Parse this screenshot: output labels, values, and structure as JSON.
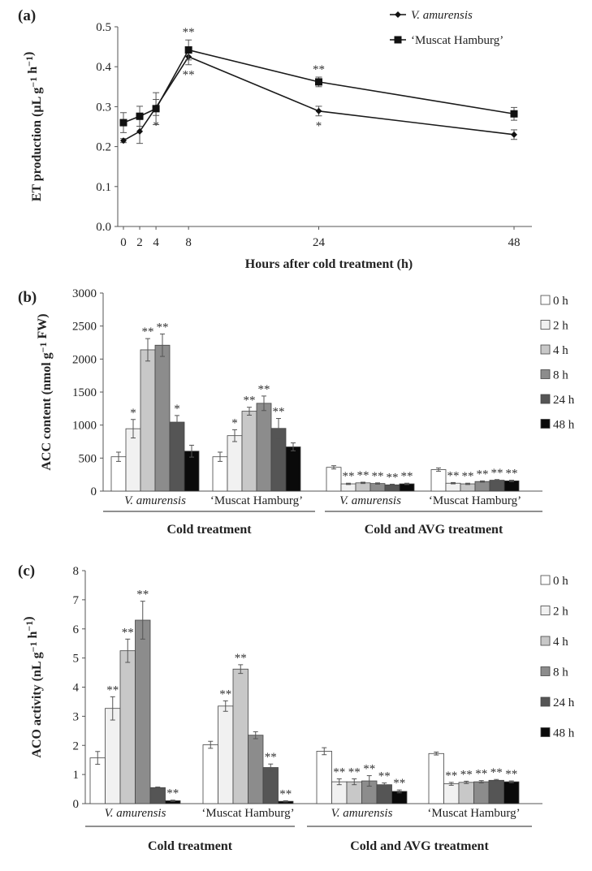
{
  "chart_data": [
    {
      "type": "line",
      "panel": "(a)",
      "ylabel": "ET production (µL g⁻¹ h⁻¹)",
      "xlabel": "Hours after cold treatment (h)",
      "ylim": [
        0,
        0.5
      ],
      "yticks": [
        "0.0",
        "0.1",
        "0.2",
        "0.3",
        "0.4",
        "0.5"
      ],
      "x": [
        0,
        2,
        4,
        8,
        24,
        48
      ],
      "xticks": [
        "0",
        "2",
        "4",
        "8",
        "24",
        "48"
      ],
      "series": [
        {
          "name": "V. amurensis",
          "marker": "diamond",
          "values": [
            0.215,
            0.238,
            0.298,
            0.425,
            0.289,
            0.23
          ],
          "errors": [
            0.005,
            0.03,
            0.02,
            0.02,
            0.012,
            0.012
          ],
          "stars": [
            "",
            "",
            "*",
            "**",
            "*",
            ""
          ]
        },
        {
          "name": "‘Muscat Hamburg’",
          "marker": "square",
          "values": [
            0.26,
            0.276,
            0.295,
            0.442,
            0.362,
            0.282
          ],
          "errors": [
            0.025,
            0.025,
            0.04,
            0.025,
            0.012,
            0.016
          ],
          "stars": [
            "",
            "",
            "",
            "**",
            "**",
            ""
          ]
        }
      ],
      "legend": [
        "V. amurensis",
        "‘Muscat Hamburg’"
      ]
    },
    {
      "type": "bar",
      "panel": "(b)",
      "ylabel": "ACC content (nmol g⁻¹ FW)",
      "ylim": [
        0,
        3000
      ],
      "yticks": [
        "0",
        "500",
        "1000",
        "1500",
        "2000",
        "2500",
        "3000"
      ],
      "series_names": [
        "0 h",
        "2 h",
        "4 h",
        "8 h",
        "24 h",
        "48 h"
      ],
      "groups": [
        {
          "label": "V. amurensis",
          "values": [
            520,
            945,
            2140,
            2210,
            1045,
            605
          ],
          "errors": [
            70,
            140,
            170,
            170,
            100,
            90
          ],
          "stars": [
            "",
            "*",
            "**",
            "**",
            "*",
            ""
          ]
        },
        {
          "label": "‘Muscat Hamburg’",
          "values": [
            520,
            840,
            1210,
            1330,
            950,
            670
          ],
          "errors": [
            70,
            90,
            60,
            110,
            150,
            60
          ],
          "stars": [
            "",
            "*",
            "**",
            "**",
            "**",
            ""
          ]
        },
        {
          "label": "V. amurensis",
          "values": [
            360,
            110,
            125,
            115,
            95,
            110
          ],
          "errors": [
            25,
            10,
            10,
            10,
            10,
            10
          ],
          "stars": [
            "",
            "**",
            "**",
            "**",
            "**",
            "**"
          ]
        },
        {
          "label": "‘Muscat Hamburg’",
          "values": [
            325,
            120,
            110,
            145,
            165,
            155
          ],
          "errors": [
            25,
            10,
            10,
            10,
            10,
            10
          ],
          "stars": [
            "",
            "**",
            "**",
            "**",
            "**",
            "**"
          ]
        }
      ],
      "treatments": [
        "Cold treatment",
        "Cold and AVG treatment"
      ]
    },
    {
      "type": "bar",
      "panel": "(c)",
      "ylabel": "ACO activity (nL g⁻¹ h⁻¹)",
      "ylim": [
        0,
        8
      ],
      "yticks": [
        "0",
        "1",
        "2",
        "3",
        "4",
        "5",
        "6",
        "7",
        "8"
      ],
      "series_names": [
        "0 h",
        "2 h",
        "4 h",
        "8 h",
        "24 h",
        "48 h"
      ],
      "groups": [
        {
          "label": "V. amurensis",
          "values": [
            1.57,
            3.27,
            5.25,
            6.3,
            0.55,
            0.1
          ],
          "errors": [
            0.22,
            0.4,
            0.4,
            0.65,
            0.02,
            0.02
          ],
          "stars": [
            "",
            "**",
            "**",
            "**",
            "",
            "**"
          ]
        },
        {
          "label": "‘Muscat Hamburg’",
          "values": [
            2.02,
            3.35,
            4.62,
            2.35,
            1.24,
            0.08
          ],
          "errors": [
            0.12,
            0.18,
            0.15,
            0.12,
            0.12,
            0.02
          ],
          "stars": [
            "",
            "**",
            "**",
            "",
            "**",
            "**"
          ]
        },
        {
          "label": "V. amurensis",
          "values": [
            1.8,
            0.75,
            0.75,
            0.78,
            0.65,
            0.42
          ],
          "errors": [
            0.12,
            0.1,
            0.1,
            0.18,
            0.06,
            0.05
          ],
          "stars": [
            "",
            "**",
            "**",
            "**",
            "**",
            "**"
          ]
        },
        {
          "label": "‘Muscat Hamburg’",
          "values": [
            1.72,
            0.68,
            0.73,
            0.75,
            0.8,
            0.75
          ],
          "errors": [
            0.05,
            0.05,
            0.04,
            0.04,
            0.03,
            0.03
          ],
          "stars": [
            "",
            "**",
            "**",
            "**",
            "**",
            "**"
          ]
        }
      ],
      "treatments": [
        "Cold treatment",
        "Cold and AVG treatment"
      ]
    }
  ],
  "colors": {
    "bar_fills": [
      "#ffffff",
      "#f1f1f1",
      "#c8c8c8",
      "#8c8c8c",
      "#555555",
      "#0a0a0a"
    ],
    "line": "#1a1a1a",
    "axis": "#555555"
  }
}
